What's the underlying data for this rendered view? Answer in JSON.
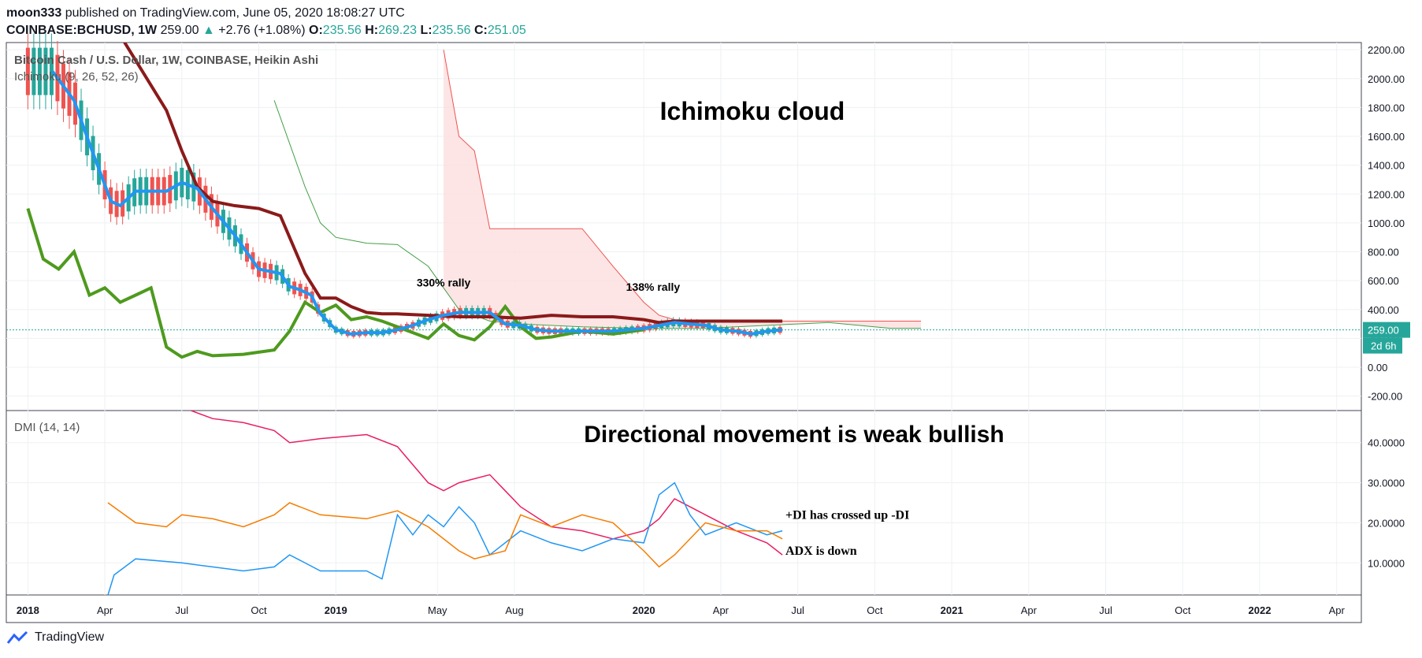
{
  "header": {
    "author": "moon333",
    "published_text": "published on TradingView.com, June 05, 2020 18:08:27 UTC",
    "symbol": "COINBASE:BCHUSD, 1W",
    "price": "259.00",
    "change": "+2.76 (+1.08%)",
    "o_label": "O:",
    "o_value": "235.56",
    "h_label": "H:",
    "h_value": "269.23",
    "l_label": "L:",
    "l_value": "235.56",
    "c_label": "C:",
    "c_value": "251.05"
  },
  "footer": {
    "brand": "TradingView"
  },
  "chart_data": [
    {
      "type": "candlestick",
      "title": "Bitcoin Cash / U.S. Dollar, 1W, COINBASE, Heikin Ashi",
      "indicator_label": "Ichimoku (9, 26, 52, 26)",
      "annotation_main": "Ichimoku cloud",
      "annotations": [
        {
          "text": "330% rally",
          "x": 2019.35,
          "y": 560
        },
        {
          "text": "138% rally",
          "x": 2020.03,
          "y": 530
        }
      ],
      "y_ticks": [
        "2200.00",
        "2000.00",
        "1800.00",
        "1600.00",
        "1400.00",
        "1200.00",
        "1000.00",
        "800.00",
        "600.00",
        "400.00",
        "200.00",
        "0.00",
        "-200.00"
      ],
      "ylim": [
        -300,
        2250
      ],
      "last_price_label": "259.00",
      "countdown_label": "2d 6h",
      "last_price": 259,
      "colors": {
        "up": "#26a69a",
        "down": "#ef5350",
        "conversion": "#2196f3",
        "base": "#8b1a1a",
        "lagging": "#4e9a1e",
        "span_a": "#43a047",
        "span_b": "#ef5350",
        "cloud": "#fddede"
      },
      "series": [
        {
          "name": "Conversion Line",
          "x": [
            2018.08,
            2018.15,
            2018.2,
            2018.27,
            2018.3,
            2018.35,
            2018.45,
            2018.5,
            2018.55,
            2018.6,
            2018.67,
            2018.75,
            2018.82,
            2018.85,
            2018.88,
            2018.92,
            2018.95,
            2019.0,
            2019.05,
            2019.1,
            2019.15,
            2019.2,
            2019.25,
            2019.3,
            2019.35,
            2019.4,
            2019.45,
            2019.5,
            2019.55,
            2019.6,
            2019.65,
            2019.7,
            2019.8,
            2019.9,
            2020.0,
            2020.05,
            2020.1,
            2020.15,
            2020.2,
            2020.25,
            2020.3,
            2020.35,
            2020.4,
            2020.45
          ],
          "values": [
            2050,
            1850,
            1550,
            1150,
            1120,
            1220,
            1220,
            1280,
            1240,
            1100,
            920,
            680,
            650,
            560,
            540,
            500,
            370,
            260,
            230,
            240,
            240,
            260,
            290,
            330,
            360,
            380,
            380,
            380,
            300,
            290,
            260,
            250,
            250,
            250,
            270,
            290,
            310,
            300,
            290,
            260,
            250,
            230,
            250,
            260
          ]
        },
        {
          "name": "Base Line",
          "x": [
            2018.3,
            2018.45,
            2018.5,
            2018.55,
            2018.6,
            2018.67,
            2018.75,
            2018.82,
            2018.9,
            2018.95,
            2019.0,
            2019.05,
            2019.1,
            2019.15,
            2019.2,
            2019.3,
            2019.4,
            2019.5,
            2019.6,
            2019.7,
            2019.8,
            2019.9,
            2020.0,
            2020.05,
            2020.1,
            2020.2,
            2020.3,
            2020.45
          ],
          "values": [
            2300,
            1780,
            1500,
            1250,
            1150,
            1120,
            1100,
            1050,
            650,
            480,
            480,
            420,
            380,
            370,
            370,
            360,
            350,
            350,
            340,
            360,
            350,
            350,
            330,
            310,
            320,
            320,
            320,
            320
          ]
        },
        {
          "name": "Lagging Span",
          "x": [
            2018.0,
            2018.05,
            2018.1,
            2018.15,
            2018.2,
            2018.25,
            2018.3,
            2018.35,
            2018.4,
            2018.45,
            2018.5,
            2018.55,
            2018.6,
            2018.7,
            2018.8,
            2018.85,
            2018.9,
            2018.95,
            2019.0,
            2019.05,
            2019.1,
            2019.15,
            2019.2,
            2019.25,
            2019.3,
            2019.35,
            2019.4,
            2019.45,
            2019.5,
            2019.55,
            2019.6,
            2019.65,
            2019.7,
            2019.8,
            2019.9,
            2020.0
          ],
          "values": [
            1100,
            750,
            680,
            800,
            500,
            550,
            450,
            500,
            550,
            140,
            70,
            110,
            80,
            90,
            120,
            250,
            450,
            380,
            430,
            330,
            350,
            320,
            280,
            240,
            200,
            300,
            220,
            190,
            280,
            420,
            280,
            200,
            210,
            250,
            230,
            260
          ]
        },
        {
          "name": "Leading Span A",
          "x": [
            2018.8,
            2018.9,
            2018.95,
            2019.0,
            2019.05,
            2019.1,
            2019.2,
            2019.3,
            2019.4,
            2019.5,
            2019.6,
            2019.8,
            2020.0,
            2020.2,
            2020.4,
            2020.6,
            2020.8,
            2020.9
          ],
          "values": [
            1850,
            1250,
            1000,
            900,
            880,
            860,
            850,
            700,
            400,
            320,
            300,
            280,
            270,
            270,
            290,
            310,
            270,
            270
          ]
        },
        {
          "name": "Leading Span B",
          "x": [
            2019.35,
            2019.4,
            2019.45,
            2019.5,
            2019.6,
            2019.7,
            2019.8,
            2019.9,
            2020.0,
            2020.05,
            2020.1,
            2020.2,
            2020.4,
            2020.6,
            2020.8,
            2020.9
          ],
          "values": [
            2200,
            1600,
            1500,
            960,
            960,
            960,
            960,
            700,
            450,
            360,
            330,
            320,
            320,
            320,
            320,
            320
          ]
        }
      ]
    },
    {
      "type": "line",
      "title": "DMI (14, 14)",
      "annotation_main": "Directional movement is weak bullish",
      "annotations": [
        {
          "text": "+DI has crossed up -DI",
          "x": 2020.46,
          "y": 21
        },
        {
          "text": "ADX is down",
          "x": 2020.46,
          "y": 12
        }
      ],
      "y_ticks": [
        "40.0000",
        "30.0000",
        "20.0000",
        "10.0000"
      ],
      "ylim": [
        2,
        48
      ],
      "series": [
        {
          "name": "ADX",
          "color": "#e91e63",
          "x": [
            2018.53,
            2018.6,
            2018.7,
            2018.8,
            2018.85,
            2018.95,
            2019.1,
            2019.2,
            2019.3,
            2019.35,
            2019.4,
            2019.5,
            2019.6,
            2019.7,
            2019.8,
            2019.9,
            2020.0,
            2020.05,
            2020.1,
            2020.2,
            2020.3,
            2020.4,
            2020.45
          ],
          "values": [
            48,
            46,
            45,
            43,
            40,
            41,
            42,
            39,
            30,
            28,
            30,
            32,
            24,
            19,
            18,
            16,
            18,
            21,
            26,
            22,
            18,
            15,
            12
          ]
        },
        {
          "name": "+DI",
          "color": "#2196f3",
          "x": [
            2018.26,
            2018.28,
            2018.35,
            2018.5,
            2018.6,
            2018.7,
            2018.8,
            2018.85,
            2018.95,
            2019.1,
            2019.15,
            2019.2,
            2019.25,
            2019.3,
            2019.35,
            2019.4,
            2019.45,
            2019.5,
            2019.6,
            2019.7,
            2019.8,
            2019.9,
            2020.0,
            2020.05,
            2020.1,
            2020.15,
            2020.2,
            2020.3,
            2020.4,
            2020.45
          ],
          "values": [
            2,
            7,
            11,
            10,
            9,
            8,
            9,
            12,
            8,
            8,
            6,
            22,
            17,
            22,
            19,
            24,
            20,
            12,
            18,
            15,
            13,
            16,
            15,
            27,
            30,
            22,
            17,
            20,
            17,
            18
          ]
        },
        {
          "name": "-DI",
          "color": "#f57c00",
          "x": [
            2018.26,
            2018.35,
            2018.45,
            2018.5,
            2018.6,
            2018.7,
            2018.8,
            2018.85,
            2018.95,
            2019.1,
            2019.2,
            2019.3,
            2019.4,
            2019.45,
            2019.55,
            2019.6,
            2019.7,
            2019.8,
            2019.9,
            2020.0,
            2020.05,
            2020.1,
            2020.2,
            2020.3,
            2020.4,
            2020.45
          ],
          "values": [
            25,
            20,
            19,
            22,
            21,
            19,
            22,
            25,
            22,
            21,
            23,
            19,
            13,
            11,
            13,
            22,
            19,
            22,
            20,
            13,
            9,
            12,
            20,
            18,
            18,
            16
          ]
        }
      ]
    }
  ],
  "x_axis": {
    "labels": [
      "2018",
      "Apr",
      "Jul",
      "Oct",
      "2019",
      "May",
      "Aug",
      "2020",
      "Apr",
      "Jul",
      "Oct",
      "2021",
      "Apr",
      "Jul",
      "Oct",
      "2022",
      "Apr"
    ],
    "positions": [
      2018.0,
      2018.25,
      2018.5,
      2018.75,
      2019.0,
      2019.33,
      2019.58,
      2020.0,
      2020.25,
      2020.5,
      2020.75,
      2021.0,
      2021.25,
      2021.5,
      2021.75,
      2022.0,
      2022.25
    ]
  }
}
